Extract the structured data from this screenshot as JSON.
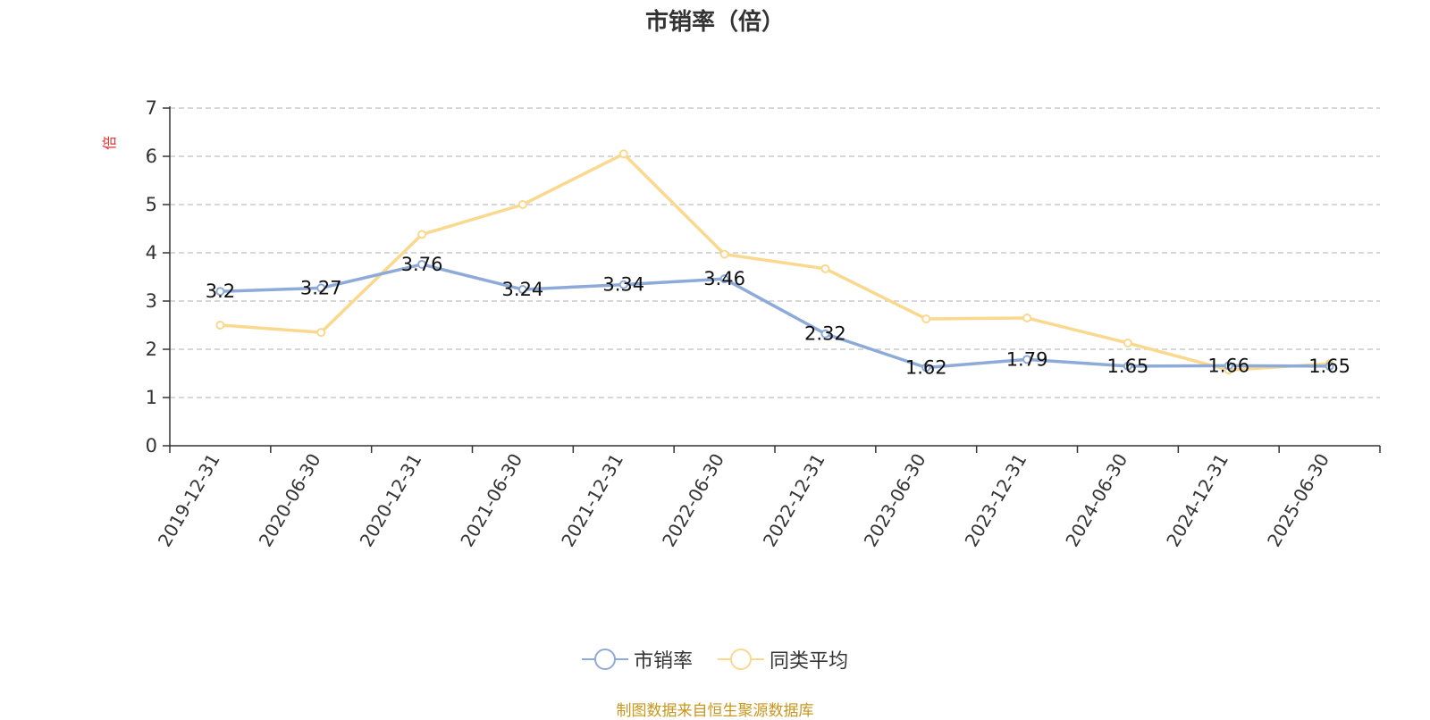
{
  "chart_data": {
    "type": "line",
    "title": "市销率（倍）",
    "ylabel": "倍",
    "xlabel": "",
    "ylim": [
      0,
      7
    ],
    "yticks": [
      0,
      1,
      2,
      3,
      4,
      5,
      6,
      7
    ],
    "grid": true,
    "legend_position": "bottom",
    "categories": [
      "2019-12-31",
      "2020-06-30",
      "2020-12-31",
      "2021-06-30",
      "2021-12-31",
      "2022-06-30",
      "2022-12-31",
      "2023-06-30",
      "2023-12-31",
      "2024-06-30",
      "2024-12-31",
      "2025-06-30"
    ],
    "series": [
      {
        "name": "市销率",
        "color": "#8eaad8",
        "show_labels": true,
        "values": [
          3.2,
          3.27,
          3.76,
          3.24,
          3.34,
          3.46,
          2.32,
          1.62,
          1.79,
          1.65,
          1.66,
          1.65
        ],
        "labels": [
          "3.2",
          "3.27",
          "3.76",
          "3.24",
          "3.34",
          "3.46",
          "2.32",
          "1.62",
          "1.79",
          "1.65",
          "1.66",
          "1.65"
        ]
      },
      {
        "name": "同类平均",
        "color": "#fad88e",
        "show_labels": false,
        "values": [
          2.5,
          2.35,
          4.38,
          5.0,
          6.05,
          3.97,
          3.67,
          2.63,
          2.65,
          2.13,
          1.57,
          1.7
        ]
      }
    ]
  },
  "source_note": "制图数据来自恒生聚源数据库"
}
